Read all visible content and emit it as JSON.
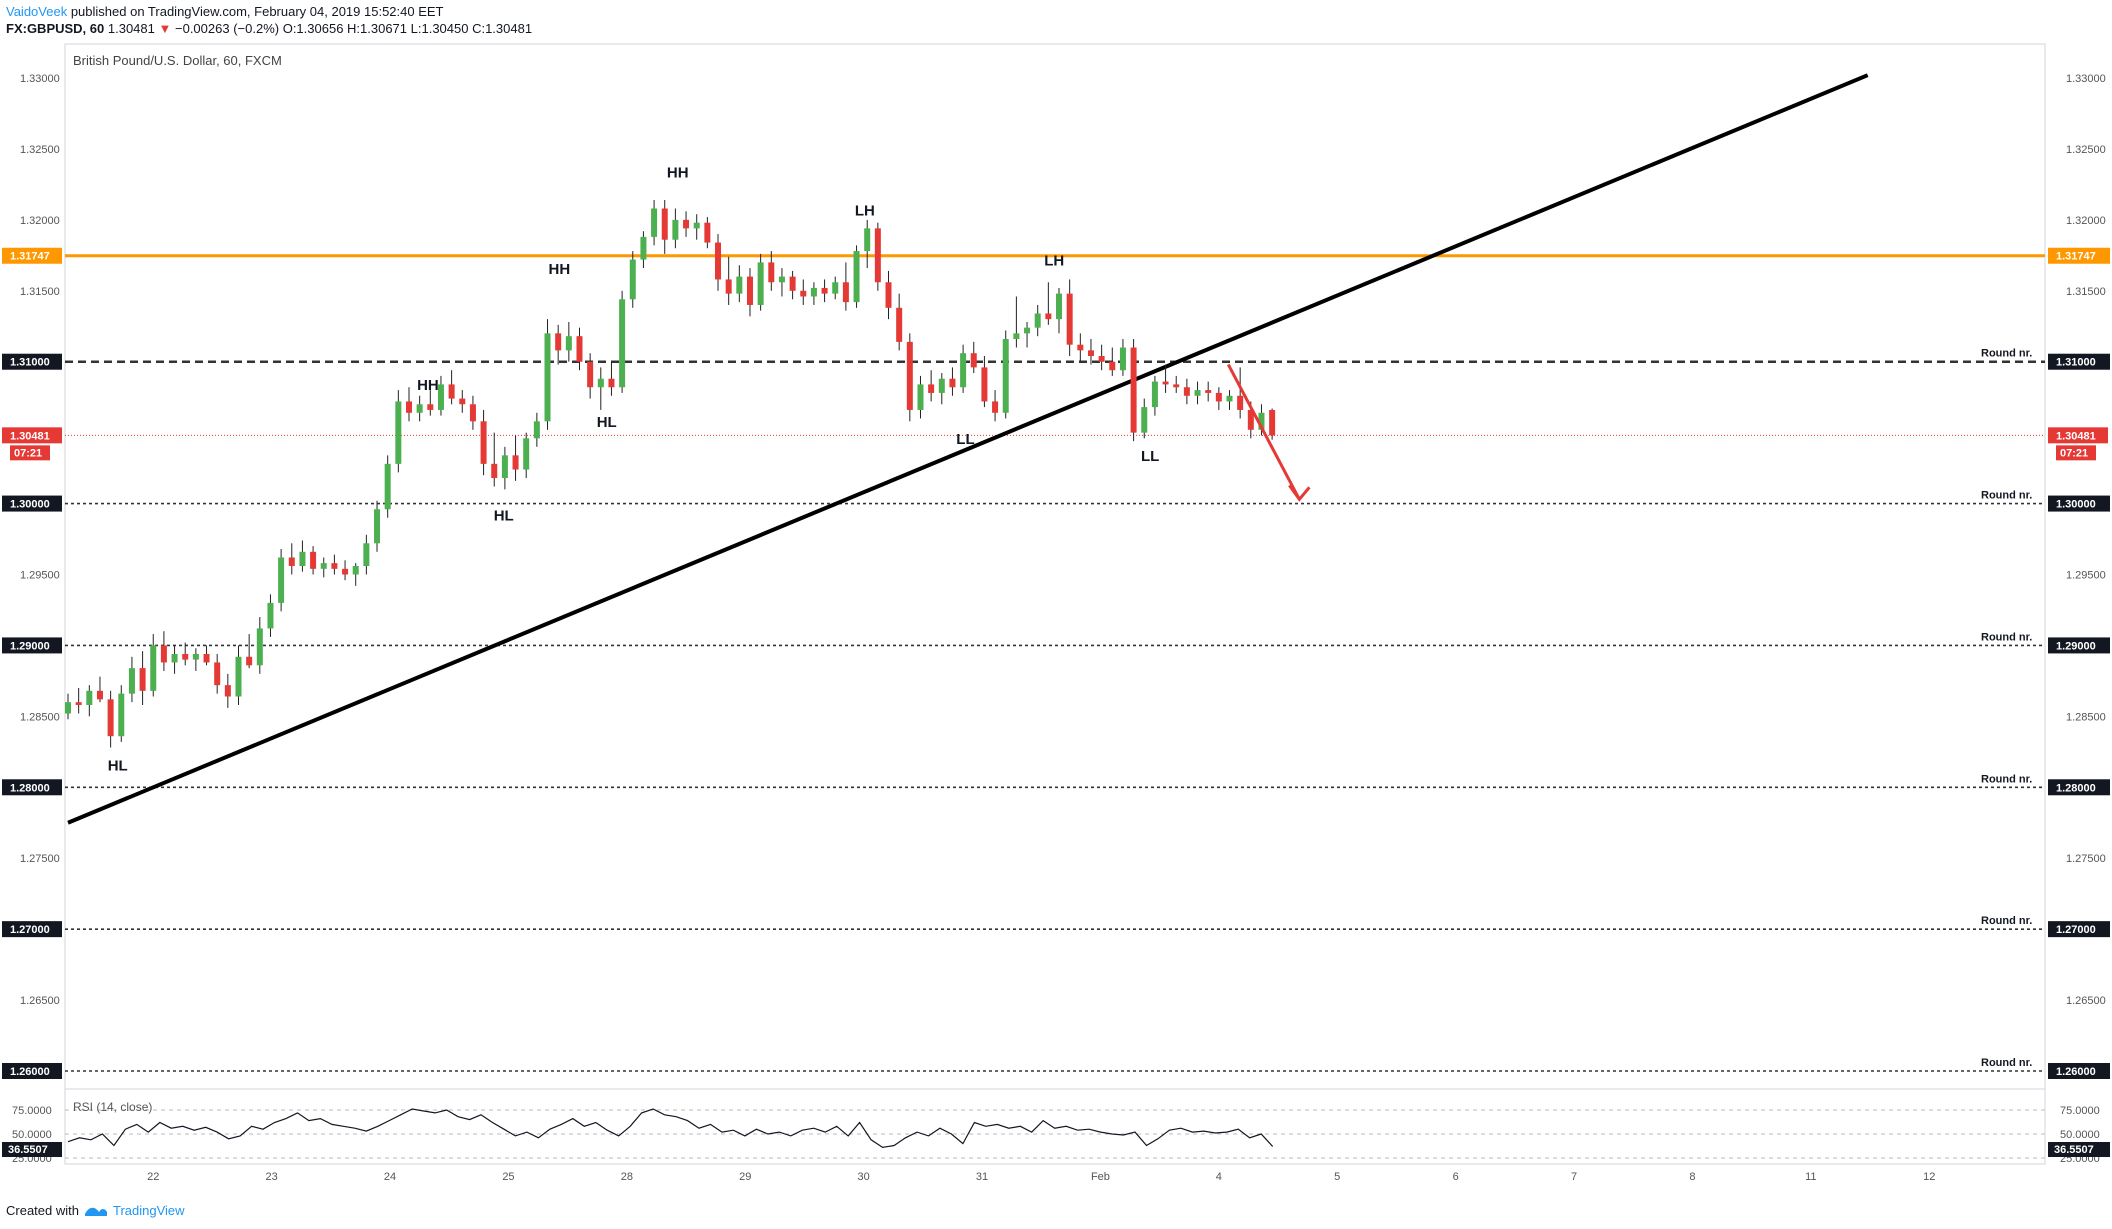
{
  "header": {
    "author": "VaidoVeek",
    "published": "published on TradingView.com, February 04, 2019 15:52:40 EET",
    "symbol": "FX:GBPUSD, 60",
    "last": "1.30481",
    "change": "−0.00263 (−0.2%)",
    "ohlc": "O:1.30656 H:1.30671 L:1.30450 C:1.30481"
  },
  "footer": {
    "created": "Created with",
    "brand": "TradingView"
  },
  "colors": {
    "up": "#26a69a",
    "upBody": "#4caf50",
    "down": "#e53935",
    "orange": "#ff9800",
    "trend": "#000000"
  },
  "chart_data": {
    "type": "candlestick",
    "title": "British Pound/U.S. Dollar, 60, FXCM",
    "y_ticks": [
      "1.33000",
      "1.32500",
      "1.32000",
      "1.31500",
      "1.31000",
      "1.30500",
      "1.30000",
      "1.29500",
      "1.29000",
      "1.28500",
      "1.28000",
      "1.27500",
      "1.27000",
      "1.26500",
      "1.26000"
    ],
    "x_ticks": [
      "22",
      "23",
      "24",
      "25",
      "28",
      "29",
      "30",
      "31",
      "Feb",
      "4",
      "5",
      "6",
      "7",
      "8",
      "11",
      "12"
    ],
    "ylim": [
      1.2575,
      1.3345
    ],
    "last_price": "1.30481",
    "countdown": "07:21",
    "resistance_label": "1.31747",
    "round_level_label": "1.31000",
    "round_levels": [
      {
        "value": 1.31,
        "label": "Round nr.",
        "axis": "1.31000"
      },
      {
        "value": 1.3,
        "label": "Round nr.",
        "axis": "1.30000"
      },
      {
        "value": 1.29,
        "label": "Round nr.",
        "axis": "1.29000"
      },
      {
        "value": 1.28,
        "label": "Round nr.",
        "axis": "1.28000"
      },
      {
        "value": 1.27,
        "label": "Round nr.",
        "axis": "1.27000"
      },
      {
        "value": 1.26,
        "label": "Round nr.",
        "axis": "1.26000"
      }
    ],
    "resistance": 1.31747,
    "trendline": {
      "from": [
        0.0,
        1.2775
      ],
      "to": [
        15.2,
        1.3302
      ]
    },
    "projection_arrow": {
      "from": [
        9.8,
        1.3098
      ],
      "to": [
        10.4,
        1.3003
      ]
    },
    "annotations": [
      {
        "text": "HL",
        "x": 0.42,
        "y": 1.2812
      },
      {
        "text": "HH",
        "x": 3.04,
        "y": 1.308
      },
      {
        "text": "HH",
        "x": 4.15,
        "y": 1.3162
      },
      {
        "text": "HL",
        "x": 4.55,
        "y": 1.3054
      },
      {
        "text": "HL",
        "x": 3.68,
        "y": 1.2988
      },
      {
        "text": "HH",
        "x": 5.15,
        "y": 1.323
      },
      {
        "text": "LH",
        "x": 6.73,
        "y": 1.3203
      },
      {
        "text": "LH",
        "x": 8.33,
        "y": 1.3168
      },
      {
        "text": "LL",
        "x": 7.58,
        "y": 1.3042
      },
      {
        "text": "LL",
        "x": 9.14,
        "y": 1.303
      }
    ],
    "series": [
      {
        "x": 0.0,
        "o": 1.2852,
        "h": 1.2866,
        "l": 1.2848,
        "c": 1.286
      },
      {
        "x": 0.09,
        "o": 1.286,
        "h": 1.287,
        "l": 1.2852,
        "c": 1.2858
      },
      {
        "x": 0.18,
        "o": 1.2858,
        "h": 1.2872,
        "l": 1.285,
        "c": 1.2868
      },
      {
        "x": 0.27,
        "o": 1.2868,
        "h": 1.2878,
        "l": 1.286,
        "c": 1.2862
      },
      {
        "x": 0.36,
        "o": 1.2862,
        "h": 1.2868,
        "l": 1.2828,
        "c": 1.2836
      },
      {
        "x": 0.45,
        "o": 1.2836,
        "h": 1.2872,
        "l": 1.2832,
        "c": 1.2866
      },
      {
        "x": 0.54,
        "o": 1.2866,
        "h": 1.2892,
        "l": 1.286,
        "c": 1.2884
      },
      {
        "x": 0.63,
        "o": 1.2884,
        "h": 1.2896,
        "l": 1.2858,
        "c": 1.2868
      },
      {
        "x": 0.72,
        "o": 1.2868,
        "h": 1.2908,
        "l": 1.2864,
        "c": 1.29
      },
      {
        "x": 0.81,
        "o": 1.29,
        "h": 1.291,
        "l": 1.2882,
        "c": 1.2888
      },
      {
        "x": 0.9,
        "o": 1.2888,
        "h": 1.29,
        "l": 1.288,
        "c": 1.2894
      },
      {
        "x": 0.99,
        "o": 1.2894,
        "h": 1.2902,
        "l": 1.2886,
        "c": 1.289
      },
      {
        "x": 1.08,
        "o": 1.289,
        "h": 1.2898,
        "l": 1.2882,
        "c": 1.2894
      },
      {
        "x": 1.17,
        "o": 1.2894,
        "h": 1.29,
        "l": 1.2886,
        "c": 1.2888
      },
      {
        "x": 1.26,
        "o": 1.2888,
        "h": 1.2894,
        "l": 1.2866,
        "c": 1.2872
      },
      {
        "x": 1.35,
        "o": 1.2872,
        "h": 1.288,
        "l": 1.2856,
        "c": 1.2864
      },
      {
        "x": 1.44,
        "o": 1.2864,
        "h": 1.29,
        "l": 1.2858,
        "c": 1.2892
      },
      {
        "x": 1.53,
        "o": 1.2892,
        "h": 1.2908,
        "l": 1.2884,
        "c": 1.2886
      },
      {
        "x": 1.62,
        "o": 1.2886,
        "h": 1.292,
        "l": 1.288,
        "c": 1.2912
      },
      {
        "x": 1.71,
        "o": 1.2912,
        "h": 1.2936,
        "l": 1.2906,
        "c": 1.293
      },
      {
        "x": 1.8,
        "o": 1.293,
        "h": 1.2968,
        "l": 1.2924,
        "c": 1.2962
      },
      {
        "x": 1.89,
        "o": 1.2962,
        "h": 1.2972,
        "l": 1.295,
        "c": 1.2956
      },
      {
        "x": 1.98,
        "o": 1.2956,
        "h": 1.2974,
        "l": 1.2952,
        "c": 1.2966
      },
      {
        "x": 2.07,
        "o": 1.2966,
        "h": 1.297,
        "l": 1.295,
        "c": 1.2954
      },
      {
        "x": 2.16,
        "o": 1.2954,
        "h": 1.2962,
        "l": 1.2948,
        "c": 1.2958
      },
      {
        "x": 2.25,
        "o": 1.2958,
        "h": 1.2964,
        "l": 1.295,
        "c": 1.2954
      },
      {
        "x": 2.34,
        "o": 1.2954,
        "h": 1.296,
        "l": 1.2946,
        "c": 1.295
      },
      {
        "x": 2.43,
        "o": 1.295,
        "h": 1.2958,
        "l": 1.2942,
        "c": 1.2956
      },
      {
        "x": 2.52,
        "o": 1.2956,
        "h": 1.2978,
        "l": 1.295,
        "c": 1.2972
      },
      {
        "x": 2.61,
        "o": 1.2972,
        "h": 1.3002,
        "l": 1.2966,
        "c": 1.2996
      },
      {
        "x": 2.7,
        "o": 1.2996,
        "h": 1.3034,
        "l": 1.299,
        "c": 1.3028
      },
      {
        "x": 2.79,
        "o": 1.3028,
        "h": 1.308,
        "l": 1.3022,
        "c": 1.3072
      },
      {
        "x": 2.88,
        "o": 1.3072,
        "h": 1.3082,
        "l": 1.3058,
        "c": 1.3064
      },
      {
        "x": 2.97,
        "o": 1.3064,
        "h": 1.3076,
        "l": 1.3058,
        "c": 1.307
      },
      {
        "x": 3.06,
        "o": 1.307,
        "h": 1.308,
        "l": 1.3062,
        "c": 1.3066
      },
      {
        "x": 3.15,
        "o": 1.3066,
        "h": 1.309,
        "l": 1.3062,
        "c": 1.3084
      },
      {
        "x": 3.24,
        "o": 1.3084,
        "h": 1.3094,
        "l": 1.307,
        "c": 1.3074
      },
      {
        "x": 3.33,
        "o": 1.3074,
        "h": 1.308,
        "l": 1.3064,
        "c": 1.307
      },
      {
        "x": 3.42,
        "o": 1.307,
        "h": 1.3076,
        "l": 1.3052,
        "c": 1.3058
      },
      {
        "x": 3.51,
        "o": 1.3058,
        "h": 1.3066,
        "l": 1.302,
        "c": 1.3028
      },
      {
        "x": 3.6,
        "o": 1.3028,
        "h": 1.305,
        "l": 1.3012,
        "c": 1.3018
      },
      {
        "x": 3.69,
        "o": 1.3018,
        "h": 1.304,
        "l": 1.301,
        "c": 1.3034
      },
      {
        "x": 3.78,
        "o": 1.3034,
        "h": 1.3048,
        "l": 1.3016,
        "c": 1.3024
      },
      {
        "x": 3.87,
        "o": 1.3024,
        "h": 1.305,
        "l": 1.3018,
        "c": 1.3046
      },
      {
        "x": 3.96,
        "o": 1.3046,
        "h": 1.3064,
        "l": 1.304,
        "c": 1.3058
      },
      {
        "x": 4.05,
        "o": 1.3058,
        "h": 1.313,
        "l": 1.3052,
        "c": 1.312
      },
      {
        "x": 4.14,
        "o": 1.312,
        "h": 1.3126,
        "l": 1.3098,
        "c": 1.3108
      },
      {
        "x": 4.23,
        "o": 1.3108,
        "h": 1.3128,
        "l": 1.31,
        "c": 1.3118
      },
      {
        "x": 4.32,
        "o": 1.3118,
        "h": 1.3124,
        "l": 1.3094,
        "c": 1.31
      },
      {
        "x": 4.41,
        "o": 1.31,
        "h": 1.3106,
        "l": 1.3074,
        "c": 1.3082
      },
      {
        "x": 4.5,
        "o": 1.3082,
        "h": 1.3096,
        "l": 1.3066,
        "c": 1.3088
      },
      {
        "x": 4.59,
        "o": 1.3088,
        "h": 1.31,
        "l": 1.3076,
        "c": 1.3082
      },
      {
        "x": 4.68,
        "o": 1.3082,
        "h": 1.315,
        "l": 1.3078,
        "c": 1.3144
      },
      {
        "x": 4.77,
        "o": 1.3144,
        "h": 1.3178,
        "l": 1.3138,
        "c": 1.3172
      },
      {
        "x": 4.86,
        "o": 1.3172,
        "h": 1.3192,
        "l": 1.3166,
        "c": 1.3188
      },
      {
        "x": 4.95,
        "o": 1.3188,
        "h": 1.3214,
        "l": 1.3182,
        "c": 1.3208
      },
      {
        "x": 5.04,
        "o": 1.3208,
        "h": 1.3214,
        "l": 1.3176,
        "c": 1.3186
      },
      {
        "x": 5.13,
        "o": 1.3186,
        "h": 1.3208,
        "l": 1.318,
        "c": 1.32
      },
      {
        "x": 5.22,
        "o": 1.32,
        "h": 1.3206,
        "l": 1.3188,
        "c": 1.3194
      },
      {
        "x": 5.31,
        "o": 1.3194,
        "h": 1.3204,
        "l": 1.3186,
        "c": 1.3198
      },
      {
        "x": 5.4,
        "o": 1.3198,
        "h": 1.3202,
        "l": 1.318,
        "c": 1.3184
      },
      {
        "x": 5.49,
        "o": 1.3184,
        "h": 1.319,
        "l": 1.315,
        "c": 1.3158
      },
      {
        "x": 5.58,
        "o": 1.3158,
        "h": 1.3174,
        "l": 1.314,
        "c": 1.3148
      },
      {
        "x": 5.67,
        "o": 1.3148,
        "h": 1.3168,
        "l": 1.3142,
        "c": 1.316
      },
      {
        "x": 5.76,
        "o": 1.316,
        "h": 1.3166,
        "l": 1.3132,
        "c": 1.314
      },
      {
        "x": 5.85,
        "o": 1.314,
        "h": 1.3176,
        "l": 1.3136,
        "c": 1.317
      },
      {
        "x": 5.94,
        "o": 1.317,
        "h": 1.3178,
        "l": 1.315,
        "c": 1.3156
      },
      {
        "x": 6.03,
        "o": 1.3156,
        "h": 1.3166,
        "l": 1.3146,
        "c": 1.316
      },
      {
        "x": 6.12,
        "o": 1.316,
        "h": 1.3164,
        "l": 1.3144,
        "c": 1.315
      },
      {
        "x": 6.21,
        "o": 1.315,
        "h": 1.3158,
        "l": 1.314,
        "c": 1.3146
      },
      {
        "x": 6.3,
        "o": 1.3146,
        "h": 1.3156,
        "l": 1.314,
        "c": 1.3152
      },
      {
        "x": 6.39,
        "o": 1.3152,
        "h": 1.3158,
        "l": 1.3142,
        "c": 1.3148
      },
      {
        "x": 6.48,
        "o": 1.3148,
        "h": 1.316,
        "l": 1.3144,
        "c": 1.3156
      },
      {
        "x": 6.57,
        "o": 1.3156,
        "h": 1.317,
        "l": 1.3136,
        "c": 1.3142
      },
      {
        "x": 6.66,
        "o": 1.3142,
        "h": 1.3182,
        "l": 1.3138,
        "c": 1.3178
      },
      {
        "x": 6.75,
        "o": 1.3178,
        "h": 1.32,
        "l": 1.3166,
        "c": 1.3194
      },
      {
        "x": 6.84,
        "o": 1.3194,
        "h": 1.3198,
        "l": 1.315,
        "c": 1.3156
      },
      {
        "x": 6.93,
        "o": 1.3156,
        "h": 1.3164,
        "l": 1.313,
        "c": 1.3138
      },
      {
        "x": 7.02,
        "o": 1.3138,
        "h": 1.3148,
        "l": 1.3108,
        "c": 1.3114
      },
      {
        "x": 7.11,
        "o": 1.3114,
        "h": 1.312,
        "l": 1.3058,
        "c": 1.3066
      },
      {
        "x": 7.2,
        "o": 1.3066,
        "h": 1.309,
        "l": 1.306,
        "c": 1.3084
      },
      {
        "x": 7.29,
        "o": 1.3084,
        "h": 1.3094,
        "l": 1.3072,
        "c": 1.3078
      },
      {
        "x": 7.38,
        "o": 1.3078,
        "h": 1.3092,
        "l": 1.307,
        "c": 1.3088
      },
      {
        "x": 7.47,
        "o": 1.3088,
        "h": 1.3096,
        "l": 1.3076,
        "c": 1.3082
      },
      {
        "x": 7.56,
        "o": 1.3082,
        "h": 1.3112,
        "l": 1.3078,
        "c": 1.3106
      },
      {
        "x": 7.65,
        "o": 1.3106,
        "h": 1.3114,
        "l": 1.3092,
        "c": 1.3096
      },
      {
        "x": 7.74,
        "o": 1.3096,
        "h": 1.3104,
        "l": 1.3068,
        "c": 1.3072
      },
      {
        "x": 7.83,
        "o": 1.3072,
        "h": 1.308,
        "l": 1.3058,
        "c": 1.3064
      },
      {
        "x": 7.92,
        "o": 1.3064,
        "h": 1.3122,
        "l": 1.306,
        "c": 1.3116
      },
      {
        "x": 8.01,
        "o": 1.3116,
        "h": 1.3146,
        "l": 1.311,
        "c": 1.312
      },
      {
        "x": 8.1,
        "o": 1.312,
        "h": 1.3128,
        "l": 1.311,
        "c": 1.3124
      },
      {
        "x": 8.19,
        "o": 1.3124,
        "h": 1.314,
        "l": 1.3118,
        "c": 1.3134
      },
      {
        "x": 8.28,
        "o": 1.3134,
        "h": 1.3156,
        "l": 1.3126,
        "c": 1.313
      },
      {
        "x": 8.37,
        "o": 1.313,
        "h": 1.3152,
        "l": 1.312,
        "c": 1.3148
      },
      {
        "x": 8.46,
        "o": 1.3148,
        "h": 1.3158,
        "l": 1.3104,
        "c": 1.3112
      },
      {
        "x": 8.55,
        "o": 1.3112,
        "h": 1.312,
        "l": 1.31,
        "c": 1.3108
      },
      {
        "x": 8.64,
        "o": 1.3108,
        "h": 1.3116,
        "l": 1.3098,
        "c": 1.3104
      },
      {
        "x": 8.73,
        "o": 1.3104,
        "h": 1.3112,
        "l": 1.3094,
        "c": 1.31
      },
      {
        "x": 8.82,
        "o": 1.31,
        "h": 1.311,
        "l": 1.309,
        "c": 1.3094
      },
      {
        "x": 8.91,
        "o": 1.3094,
        "h": 1.3116,
        "l": 1.309,
        "c": 1.311
      },
      {
        "x": 9.0,
        "o": 1.311,
        "h": 1.3116,
        "l": 1.3044,
        "c": 1.305
      },
      {
        "x": 9.09,
        "o": 1.305,
        "h": 1.3074,
        "l": 1.3046,
        "c": 1.3068
      },
      {
        "x": 9.18,
        "o": 1.3068,
        "h": 1.309,
        "l": 1.3062,
        "c": 1.3086
      },
      {
        "x": 9.27,
        "o": 1.3086,
        "h": 1.3098,
        "l": 1.3078,
        "c": 1.3084
      },
      {
        "x": 9.36,
        "o": 1.3084,
        "h": 1.309,
        "l": 1.3078,
        "c": 1.3082
      },
      {
        "x": 9.45,
        "o": 1.3082,
        "h": 1.3088,
        "l": 1.307,
        "c": 1.3076
      },
      {
        "x": 9.54,
        "o": 1.3076,
        "h": 1.3086,
        "l": 1.307,
        "c": 1.308
      },
      {
        "x": 9.63,
        "o": 1.308,
        "h": 1.3086,
        "l": 1.3072,
        "c": 1.3078
      },
      {
        "x": 9.72,
        "o": 1.3078,
        "h": 1.3082,
        "l": 1.3066,
        "c": 1.3072
      },
      {
        "x": 9.81,
        "o": 1.3072,
        "h": 1.308,
        "l": 1.3066,
        "c": 1.3076
      },
      {
        "x": 9.9,
        "o": 1.3076,
        "h": 1.3096,
        "l": 1.306,
        "c": 1.3066
      },
      {
        "x": 9.99,
        "o": 1.3066,
        "h": 1.3072,
        "l": 1.3046,
        "c": 1.3052
      },
      {
        "x": 10.08,
        "o": 1.3052,
        "h": 1.307,
        "l": 1.3048,
        "c": 1.3064
      },
      {
        "x": 10.17,
        "o": 1.3066,
        "h": 1.3067,
        "l": 1.3045,
        "c": 1.3048
      }
    ],
    "rsi": {
      "label": "RSI (14, close)",
      "last": "36.5507",
      "ticks": [
        "75.0000",
        "50.0000",
        "25.0000"
      ],
      "values": [
        42,
        46,
        44,
        50,
        38,
        55,
        60,
        52,
        62,
        56,
        58,
        54,
        57,
        52,
        45,
        48,
        58,
        55,
        62,
        66,
        72,
        64,
        66,
        60,
        58,
        56,
        53,
        58,
        64,
        70,
        76,
        74,
        72,
        75,
        68,
        65,
        70,
        62,
        55,
        48,
        52,
        46,
        55,
        60,
        66,
        58,
        62,
        54,
        48,
        58,
        72,
        76,
        70,
        68,
        64,
        56,
        60,
        52,
        54,
        48,
        55,
        50,
        52,
        48,
        54,
        56,
        52,
        58,
        48,
        62,
        44,
        36,
        38,
        46,
        52,
        48,
        56,
        50,
        40,
        62,
        58,
        60,
        56,
        58,
        52,
        64,
        56,
        58,
        54,
        55,
        52,
        50,
        49,
        52,
        38,
        45,
        54,
        56,
        52,
        53,
        51,
        52,
        55,
        46,
        50,
        37
      ]
    }
  }
}
